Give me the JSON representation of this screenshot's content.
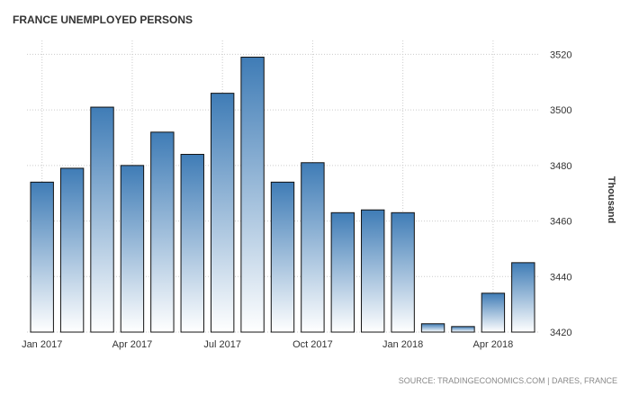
{
  "chart_data": {
    "type": "bar",
    "title": "FRANCE UNEMPLOYED PERSONS",
    "ylabel": "Thousand",
    "xlabel": "",
    "categories": [
      "Jan 2017",
      "Feb 2017",
      "Mar 2017",
      "Apr 2017",
      "May 2017",
      "Jun 2017",
      "Jul 2017",
      "Aug 2017",
      "Sep 2017",
      "Oct 2017",
      "Nov 2017",
      "Dec 2017",
      "Jan 2018",
      "Feb 2018",
      "Mar 2018",
      "Apr 2018",
      "May 2018"
    ],
    "values": [
      3474,
      3479,
      3501,
      3480,
      3492,
      3484,
      3506,
      3519,
      3474,
      3481,
      3463,
      3464,
      3463,
      3423,
      3422,
      3434,
      3445
    ],
    "x_tick_labels": [
      "Jan 2017",
      "Apr 2017",
      "Jul 2017",
      "Oct 2017",
      "Jan 2018",
      "Apr 2018"
    ],
    "x_tick_indices": [
      0,
      3,
      6,
      9,
      12,
      15
    ],
    "y_ticks": [
      3420,
      3440,
      3460,
      3480,
      3500,
      3520
    ],
    "ylim": [
      3420,
      3525
    ],
    "grid": true,
    "y_axis_side": "right",
    "source": "SOURCE: TRADINGECONOMICS.COM | DARES, FRANCE",
    "colors": {
      "bar_top": "#3f7cb6",
      "bar_bottom": "#ffffff",
      "bar_stroke": "#111111",
      "grid": "#cccccc"
    }
  }
}
